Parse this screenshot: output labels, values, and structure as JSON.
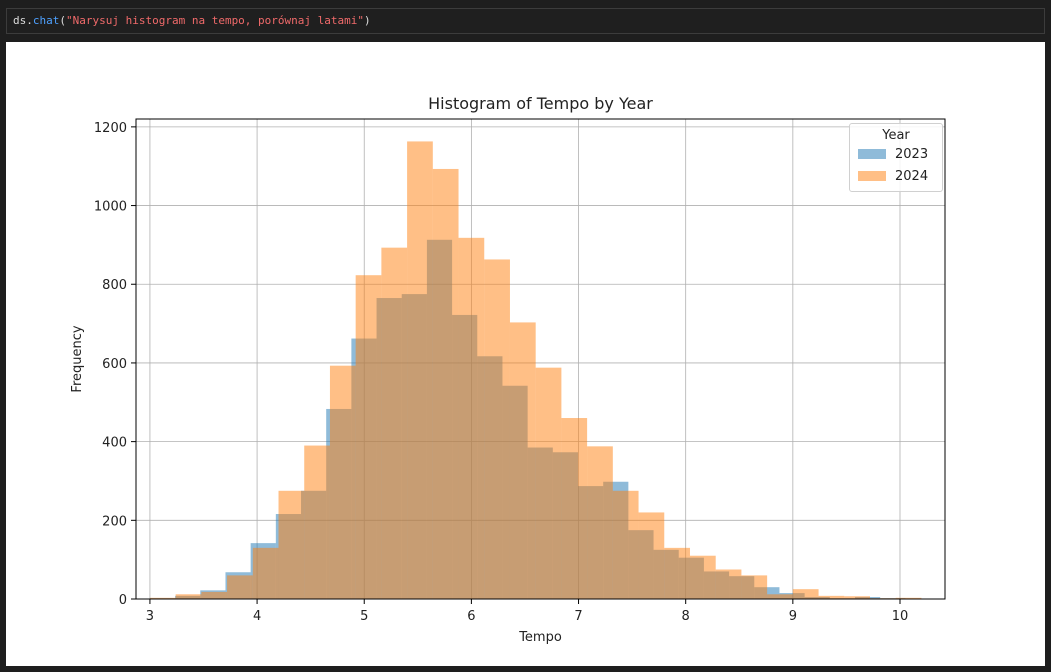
{
  "code": {
    "object": "ds",
    "dot": ".",
    "method": "chat",
    "open_paren": "(",
    "argument": "\"Narysuj histogram na tempo, porównaj latami\"",
    "close_paren": ")"
  },
  "chart_data": {
    "type": "bar",
    "title": "Histogram of Tempo by Year",
    "xlabel": "Tempo",
    "ylabel": "Frequency",
    "xlim": [
      2.87,
      10.42
    ],
    "ylim": [
      0,
      1220
    ],
    "xticks": [
      3,
      4,
      5,
      6,
      7,
      8,
      9,
      10
    ],
    "yticks": [
      0,
      200,
      400,
      600,
      800,
      1000,
      1200
    ],
    "grid": true,
    "legend": {
      "title": "Year",
      "placement": "top-right"
    },
    "series": [
      {
        "name": "2023",
        "color": "#1f77b4",
        "opacity": 0.5,
        "bin_edges": [
          3.0,
          3.235,
          3.47,
          3.705,
          3.94,
          4.175,
          4.41,
          4.645,
          4.88,
          5.115,
          5.35,
          5.585,
          5.82,
          6.055,
          6.29,
          6.525,
          6.76,
          6.995,
          7.23,
          7.465,
          7.7,
          7.935,
          8.17,
          8.405,
          8.64,
          8.875,
          9.11,
          9.345,
          9.58,
          9.815,
          10.05
        ],
        "values": [
          2,
          8,
          22,
          68,
          142,
          216,
          275,
          483,
          662,
          765,
          775,
          913,
          722,
          617,
          542,
          385,
          373,
          287,
          298,
          175,
          125,
          105,
          70,
          58,
          30,
          15,
          5,
          2,
          5,
          2
        ]
      },
      {
        "name": "2024",
        "color": "#ff7f0e",
        "opacity": 0.5,
        "bin_edges": [
          3.0,
          3.24,
          3.48,
          3.72,
          3.96,
          4.2,
          4.44,
          4.68,
          4.92,
          5.16,
          5.4,
          5.64,
          5.88,
          6.12,
          6.36,
          6.6,
          6.84,
          7.08,
          7.32,
          7.56,
          7.8,
          8.04,
          8.28,
          8.52,
          8.76,
          9.0,
          9.24,
          9.48,
          9.72,
          9.96,
          10.2
        ],
        "values": [
          3,
          12,
          18,
          60,
          130,
          275,
          390,
          593,
          823,
          893,
          1163,
          1093,
          918,
          863,
          703,
          588,
          460,
          388,
          275,
          220,
          130,
          110,
          75,
          60,
          12,
          25,
          8,
          7,
          2,
          3
        ]
      }
    ]
  }
}
